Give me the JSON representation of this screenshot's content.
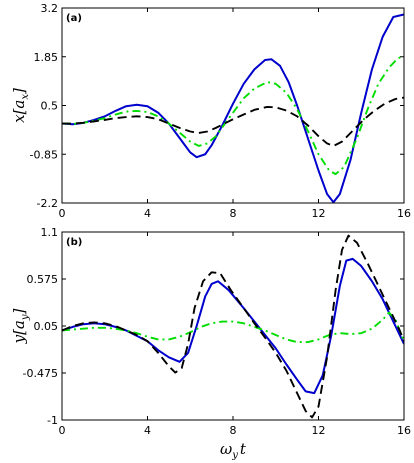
{
  "chart_data": [
    {
      "type": "line",
      "panel_label": "(a)",
      "ylabel": "x[a_x]",
      "ylabel_text": "x[a",
      "ylabel_sub": "x",
      "ylabel_close": "]",
      "xlim": [
        0,
        16
      ],
      "ylim": [
        -2.2,
        3.2
      ],
      "xticks": [
        0,
        4,
        8,
        12,
        16
      ],
      "xtick_labels": [
        "0",
        "4",
        "8",
        "12",
        "16"
      ],
      "yticks": [
        -2.2,
        -0.85,
        0.5,
        1.85,
        3.2
      ],
      "ytick_labels": [
        "-2.2",
        "-0.85",
        "0.5",
        "1.85",
        "3.2"
      ],
      "grid": false,
      "series": [
        {
          "style": "solid",
          "color": "#0000cc",
          "points": [
            [
              0,
              0.0
            ],
            [
              0.5,
              -0.02
            ],
            [
              1,
              0.02
            ],
            [
              1.5,
              0.1
            ],
            [
              2,
              0.2
            ],
            [
              2.5,
              0.35
            ],
            [
              3,
              0.48
            ],
            [
              3.5,
              0.52
            ],
            [
              4,
              0.48
            ],
            [
              4.5,
              0.3
            ],
            [
              5,
              0.0
            ],
            [
              5.5,
              -0.4
            ],
            [
              6,
              -0.8
            ],
            [
              6.3,
              -0.93
            ],
            [
              6.7,
              -0.85
            ],
            [
              7,
              -0.6
            ],
            [
              7.5,
              -0.05
            ],
            [
              8,
              0.55
            ],
            [
              8.5,
              1.1
            ],
            [
              9,
              1.5
            ],
            [
              9.5,
              1.76
            ],
            [
              9.8,
              1.78
            ],
            [
              10.2,
              1.6
            ],
            [
              10.6,
              1.15
            ],
            [
              11,
              0.5
            ],
            [
              11.5,
              -0.4
            ],
            [
              12,
              -1.3
            ],
            [
              12.4,
              -1.95
            ],
            [
              12.7,
              -2.18
            ],
            [
              13,
              -1.95
            ],
            [
              13.5,
              -1.0
            ],
            [
              14,
              0.3
            ],
            [
              14.5,
              1.5
            ],
            [
              15,
              2.4
            ],
            [
              15.5,
              2.95
            ],
            [
              16,
              3.02
            ]
          ]
        },
        {
          "style": "dashdot",
          "color": "#00dd00",
          "points": [
            [
              0,
              0.0
            ],
            [
              0.5,
              -0.01
            ],
            [
              1,
              0.02
            ],
            [
              1.5,
              0.08
            ],
            [
              2,
              0.15
            ],
            [
              2.5,
              0.25
            ],
            [
              3,
              0.33
            ],
            [
              3.5,
              0.35
            ],
            [
              4,
              0.32
            ],
            [
              4.5,
              0.2
            ],
            [
              5,
              0.0
            ],
            [
              5.5,
              -0.25
            ],
            [
              6,
              -0.5
            ],
            [
              6.4,
              -0.62
            ],
            [
              6.8,
              -0.55
            ],
            [
              7.2,
              -0.35
            ],
            [
              7.6,
              -0.02
            ],
            [
              8,
              0.3
            ],
            [
              8.5,
              0.7
            ],
            [
              9,
              0.97
            ],
            [
              9.6,
              1.15
            ],
            [
              10,
              1.1
            ],
            [
              10.5,
              0.85
            ],
            [
              11,
              0.4
            ],
            [
              11.5,
              -0.2
            ],
            [
              12,
              -0.85
            ],
            [
              12.5,
              -1.3
            ],
            [
              12.8,
              -1.4
            ],
            [
              13.2,
              -1.2
            ],
            [
              13.8,
              -0.4
            ],
            [
              14.3,
              0.4
            ],
            [
              14.8,
              1.1
            ],
            [
              15.3,
              1.55
            ],
            [
              15.7,
              1.8
            ],
            [
              16,
              1.88
            ]
          ]
        },
        {
          "style": "dashed",
          "color": "#000000",
          "points": [
            [
              0,
              0.0
            ],
            [
              0.5,
              0.0
            ],
            [
              1,
              0.02
            ],
            [
              1.5,
              0.06
            ],
            [
              2,
              0.1
            ],
            [
              2.5,
              0.15
            ],
            [
              3,
              0.18
            ],
            [
              3.5,
              0.2
            ],
            [
              4,
              0.18
            ],
            [
              4.5,
              0.12
            ],
            [
              5,
              0.0
            ],
            [
              5.5,
              -0.12
            ],
            [
              6,
              -0.22
            ],
            [
              6.4,
              -0.26
            ],
            [
              6.8,
              -0.22
            ],
            [
              7.2,
              -0.12
            ],
            [
              7.6,
              0.0
            ],
            [
              8,
              0.12
            ],
            [
              8.5,
              0.25
            ],
            [
              9,
              0.38
            ],
            [
              9.6,
              0.46
            ],
            [
              10,
              0.45
            ],
            [
              10.5,
              0.36
            ],
            [
              11,
              0.2
            ],
            [
              11.5,
              -0.05
            ],
            [
              12,
              -0.35
            ],
            [
              12.4,
              -0.55
            ],
            [
              12.7,
              -0.62
            ],
            [
              13.1,
              -0.5
            ],
            [
              13.6,
              -0.2
            ],
            [
              14.1,
              0.1
            ],
            [
              14.6,
              0.35
            ],
            [
              15.1,
              0.55
            ],
            [
              15.6,
              0.68
            ],
            [
              16,
              0.72
            ]
          ]
        }
      ]
    },
    {
      "type": "line",
      "panel_label": "(b)",
      "ylabel": "y[a_y]",
      "ylabel_text": "y[a",
      "ylabel_sub": "y",
      "ylabel_close": "]",
      "xlabel": "ω_y t",
      "xlabel_main": "ω",
      "xlabel_sub": "y",
      "xlabel_tail": "t",
      "xlim": [
        0,
        16
      ],
      "ylim": [
        -1,
        1.1
      ],
      "xticks": [
        0,
        4,
        8,
        12,
        16
      ],
      "xtick_labels": [
        "0",
        "4",
        "8",
        "12",
        "16"
      ],
      "yticks": [
        -1,
        -0.475,
        0.05,
        0.575,
        1.1
      ],
      "ytick_labels": [
        "-1",
        "-0.475",
        "0.05",
        "0.575",
        "1.1"
      ],
      "grid": false,
      "series": [
        {
          "style": "solid",
          "color": "#0000cc",
          "points": [
            [
              0,
              0.0
            ],
            [
              0.5,
              0.04
            ],
            [
              1,
              0.07
            ],
            [
              1.5,
              0.08
            ],
            [
              2,
              0.07
            ],
            [
              2.5,
              0.04
            ],
            [
              3,
              0.0
            ],
            [
              3.5,
              -0.06
            ],
            [
              4,
              -0.12
            ],
            [
              4.5,
              -0.22
            ],
            [
              5,
              -0.3
            ],
            [
              5.5,
              -0.35
            ],
            [
              5.9,
              -0.25
            ],
            [
              6.3,
              0.05
            ],
            [
              6.7,
              0.38
            ],
            [
              7,
              0.52
            ],
            [
              7.3,
              0.55
            ],
            [
              7.8,
              0.45
            ],
            [
              8.5,
              0.25
            ],
            [
              9,
              0.1
            ],
            [
              9.5,
              -0.05
            ],
            [
              10,
              -0.2
            ],
            [
              10.5,
              -0.38
            ],
            [
              11,
              -0.55
            ],
            [
              11.4,
              -0.68
            ],
            [
              11.8,
              -0.7
            ],
            [
              12.2,
              -0.5
            ],
            [
              12.6,
              -0.05
            ],
            [
              13,
              0.5
            ],
            [
              13.3,
              0.78
            ],
            [
              13.6,
              0.8
            ],
            [
              14,
              0.72
            ],
            [
              14.5,
              0.55
            ],
            [
              15,
              0.35
            ],
            [
              15.5,
              0.1
            ],
            [
              16,
              -0.15
            ]
          ]
        },
        {
          "style": "dashdot",
          "color": "#00dd00",
          "points": [
            [
              0,
              0.0
            ],
            [
              0.5,
              0.01
            ],
            [
              1,
              0.02
            ],
            [
              1.5,
              0.03
            ],
            [
              2,
              0.03
            ],
            [
              2.5,
              0.02
            ],
            [
              3,
              0.0
            ],
            [
              3.5,
              -0.03
            ],
            [
              4,
              -0.07
            ],
            [
              4.5,
              -0.1
            ],
            [
              5,
              -0.1
            ],
            [
              5.5,
              -0.07
            ],
            [
              6,
              -0.02
            ],
            [
              6.5,
              0.04
            ],
            [
              7,
              0.08
            ],
            [
              7.5,
              0.1
            ],
            [
              8,
              0.1
            ],
            [
              8.5,
              0.08
            ],
            [
              9,
              0.04
            ],
            [
              9.5,
              0.0
            ],
            [
              10,
              -0.05
            ],
            [
              10.5,
              -0.1
            ],
            [
              11,
              -0.13
            ],
            [
              11.5,
              -0.13
            ],
            [
              12,
              -0.1
            ],
            [
              12.5,
              -0.05
            ],
            [
              13,
              -0.03
            ],
            [
              13.5,
              -0.04
            ],
            [
              14,
              -0.03
            ],
            [
              14.5,
              0.02
            ],
            [
              15,
              0.12
            ],
            [
              15.3,
              0.2
            ],
            [
              15.6,
              0.12
            ],
            [
              16,
              -0.12
            ]
          ]
        },
        {
          "style": "dashed",
          "color": "#000000",
          "points": [
            [
              0,
              0.0
            ],
            [
              0.5,
              0.05
            ],
            [
              1,
              0.08
            ],
            [
              1.5,
              0.09
            ],
            [
              2,
              0.08
            ],
            [
              2.5,
              0.05
            ],
            [
              3,
              0.0
            ],
            [
              3.5,
              -0.05
            ],
            [
              4,
              -0.12
            ],
            [
              4.5,
              -0.25
            ],
            [
              5,
              -0.4
            ],
            [
              5.3,
              -0.47
            ],
            [
              5.6,
              -0.42
            ],
            [
              5.9,
              -0.15
            ],
            [
              6.2,
              0.25
            ],
            [
              6.6,
              0.55
            ],
            [
              7,
              0.65
            ],
            [
              7.4,
              0.64
            ],
            [
              7.9,
              0.45
            ],
            [
              8.5,
              0.25
            ],
            [
              9,
              0.08
            ],
            [
              9.5,
              -0.08
            ],
            [
              10,
              -0.25
            ],
            [
              10.5,
              -0.45
            ],
            [
              11,
              -0.7
            ],
            [
              11.4,
              -0.9
            ],
            [
              11.7,
              -0.97
            ],
            [
              12,
              -0.85
            ],
            [
              12.4,
              -0.3
            ],
            [
              12.8,
              0.45
            ],
            [
              13.1,
              0.9
            ],
            [
              13.4,
              1.06
            ],
            [
              13.8,
              0.98
            ],
            [
              14.3,
              0.75
            ],
            [
              14.8,
              0.5
            ],
            [
              15.3,
              0.25
            ],
            [
              15.8,
              0.0
            ],
            [
              16,
              -0.12
            ]
          ]
        }
      ]
    }
  ]
}
